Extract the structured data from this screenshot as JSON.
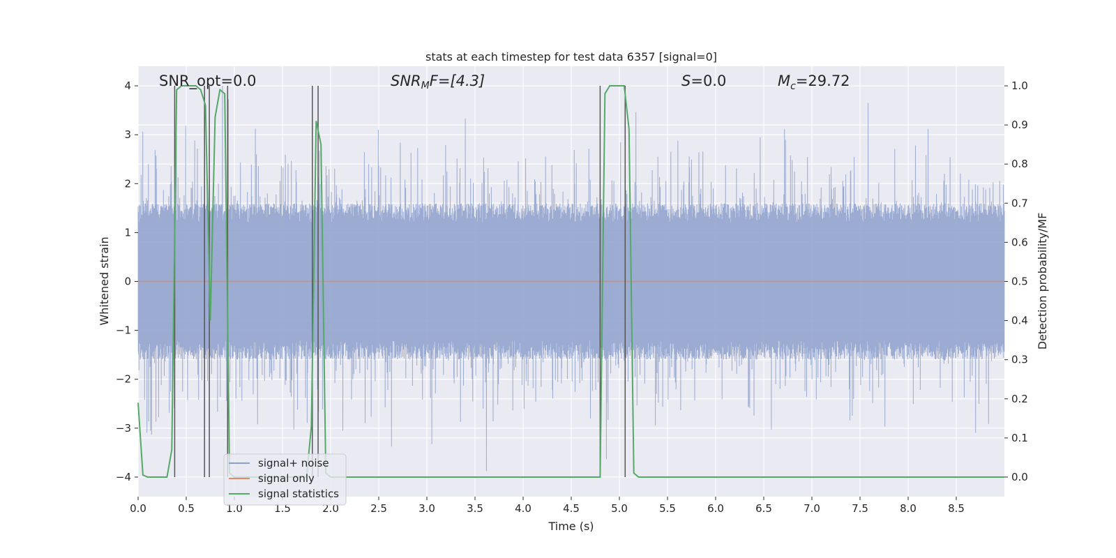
{
  "chart_data": {
    "type": "line",
    "title": "stats at each timestep for test data 6357 [signal=0]",
    "xlabel": "Time (s)",
    "ylabel_left": "Whitened strain",
    "ylabel_right": "Detection probability/MF",
    "xlim": [
      0,
      9
    ],
    "ylim_left": [
      -4.4,
      4.4
    ],
    "ylim_right": [
      -0.05,
      1.05
    ],
    "x_ticks": [
      "0.0",
      "0.5",
      "1.0",
      "1.5",
      "2.0",
      "2.5",
      "3.0",
      "3.5",
      "4.0",
      "4.5",
      "5.0",
      "5.5",
      "6.0",
      "6.5",
      "7.0",
      "7.5",
      "8.0",
      "8.5"
    ],
    "y_left_ticks": [
      "4",
      "3",
      "2",
      "1",
      "0",
      "−1",
      "−2",
      "−3",
      "−4"
    ],
    "y_right_ticks": [
      "1.0",
      "0.9",
      "0.8",
      "0.7",
      "0.6",
      "0.5",
      "0.4",
      "0.3",
      "0.2",
      "0.1",
      "0.0"
    ],
    "grid": true,
    "legend_position": "lower-left",
    "annotations": {
      "snr_opt": "SNR_opt=0.0",
      "snr_mf": "SNR",
      "snr_mf_sub": "M",
      "snr_mf_rest": "F=[4.3]",
      "s_val": "S",
      "s_rest": "=0.0",
      "mc": "M",
      "mc_sub": "c",
      "mc_rest": "=29.72"
    },
    "series": [
      {
        "name": "signal+ noise",
        "color": "#8da0cb",
        "description_noise": {
          "sample_rate": 2048,
          "envelope": 1.6,
          "spike_max": 4.0
        }
      },
      {
        "name": "signal only",
        "color": "#e08a68",
        "values_constant": 0
      },
      {
        "name": "signal statistics",
        "color": "#55a868",
        "x": [
          0.0,
          0.05,
          0.1,
          0.15,
          0.2,
          0.25,
          0.3,
          0.35,
          0.4,
          0.45,
          0.5,
          0.55,
          0.6,
          0.65,
          0.7,
          0.75,
          0.8,
          0.85,
          0.9,
          0.95,
          1.0,
          1.05,
          1.1,
          1.15,
          1.2,
          1.25,
          1.3,
          1.35,
          1.4,
          1.45,
          1.5,
          1.55,
          1.6,
          1.65,
          1.7,
          1.75,
          1.8,
          1.85,
          1.9,
          1.95,
          2.0,
          2.05,
          2.1,
          4.8,
          4.85,
          4.9,
          4.95,
          5.0,
          5.05,
          5.1,
          5.15,
          5.2,
          5.25,
          5.3,
          9.0
        ],
        "y": [
          0.19,
          0.005,
          0.0,
          0.0,
          0.0,
          0.0,
          0.0,
          0.07,
          0.99,
          1.0,
          1.0,
          1.0,
          1.0,
          0.99,
          0.95,
          0.4,
          0.92,
          0.99,
          0.98,
          0.01,
          0.0,
          0.0,
          0.0,
          0.0,
          0.0,
          0.0,
          0.0,
          0.0,
          0.0,
          0.0,
          0.0,
          0.0,
          0.0,
          0.0,
          0.0,
          0.0,
          0.13,
          0.91,
          0.85,
          0.01,
          0.0,
          0.0,
          0.0,
          0.0,
          0.98,
          1.0,
          1.0,
          1.0,
          1.0,
          0.89,
          0.01,
          0.0,
          0.0,
          0.0,
          0.0
        ]
      }
    ],
    "vertical_lines_x": [
      0.38,
      0.69,
      0.74,
      0.93,
      1.81,
      1.87,
      4.8,
      5.06
    ]
  }
}
